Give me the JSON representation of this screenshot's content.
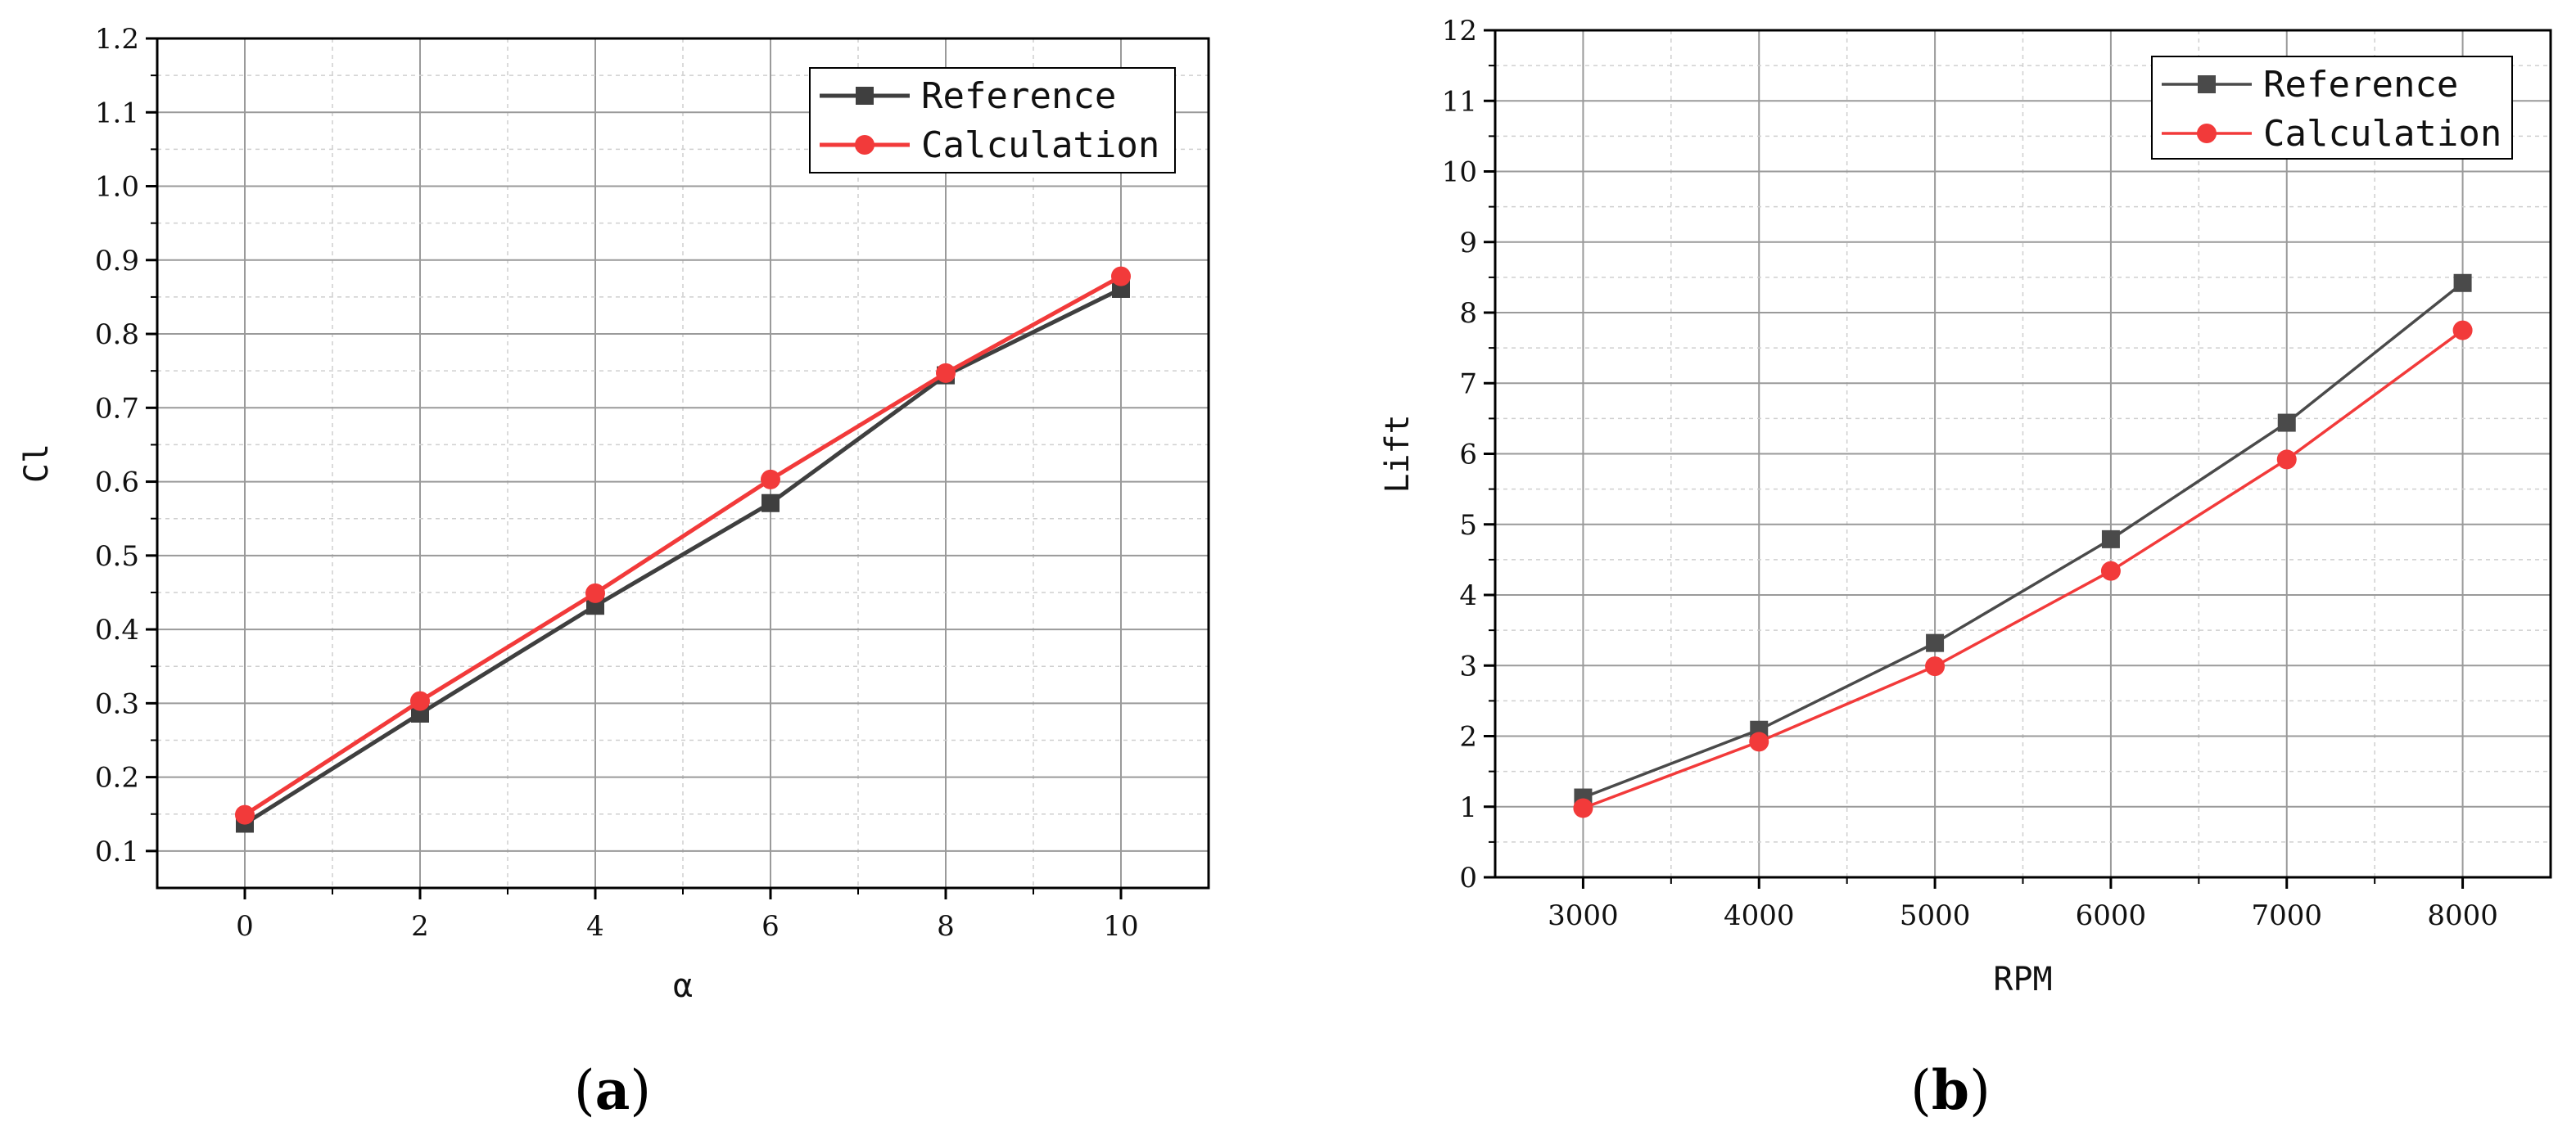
{
  "chart_data": [
    {
      "type": "line",
      "panel_label": "a",
      "title": "",
      "xlabel": "α",
      "ylabel": "Cl",
      "x": [
        0,
        2,
        4,
        6,
        8,
        10
      ],
      "xlim": [
        -1,
        11
      ],
      "ylim": [
        0.05,
        1.2
      ],
      "xticks": [
        "0",
        "2",
        "4",
        "6",
        "8",
        "10"
      ],
      "yticks": [
        "0.1",
        "0.2",
        "0.3",
        "0.4",
        "0.5",
        "0.6",
        "0.7",
        "0.8",
        "0.9",
        "1.0",
        "1.1",
        "1.2"
      ],
      "grid": true,
      "legend_position": "top-right",
      "series": [
        {
          "name": "Reference",
          "color": "#3f3f3f",
          "marker": "square",
          "values": [
            0.137,
            0.286,
            0.432,
            0.571,
            0.744,
            0.861
          ]
        },
        {
          "name": "Calculation",
          "color": "#f23a3a",
          "marker": "circle",
          "values": [
            0.149,
            0.303,
            0.449,
            0.603,
            0.747,
            0.878
          ]
        }
      ]
    },
    {
      "type": "line",
      "panel_label": "b",
      "title": "",
      "xlabel": "RPM",
      "ylabel": "Lift",
      "x": [
        3000,
        4000,
        5000,
        6000,
        7000,
        8000
      ],
      "xlim": [
        2500,
        8500
      ],
      "ylim": [
        0,
        12
      ],
      "xticks": [
        "3000",
        "4000",
        "5000",
        "6000",
        "7000",
        "8000"
      ],
      "yticks": [
        "0",
        "1",
        "2",
        "3",
        "4",
        "5",
        "6",
        "7",
        "8",
        "9",
        "10",
        "11",
        "12"
      ],
      "grid": true,
      "legend_position": "top-right",
      "series": [
        {
          "name": "Reference",
          "color": "#4a4a4a",
          "marker": "square",
          "values": [
            1.13,
            2.09,
            3.32,
            4.79,
            6.44,
            8.42
          ]
        },
        {
          "name": "Calculation",
          "color": "#f23a3a",
          "marker": "circle",
          "values": [
            0.98,
            1.92,
            2.99,
            4.34,
            5.92,
            7.75
          ]
        }
      ]
    }
  ],
  "captions": {
    "a": "a",
    "b": "b"
  }
}
